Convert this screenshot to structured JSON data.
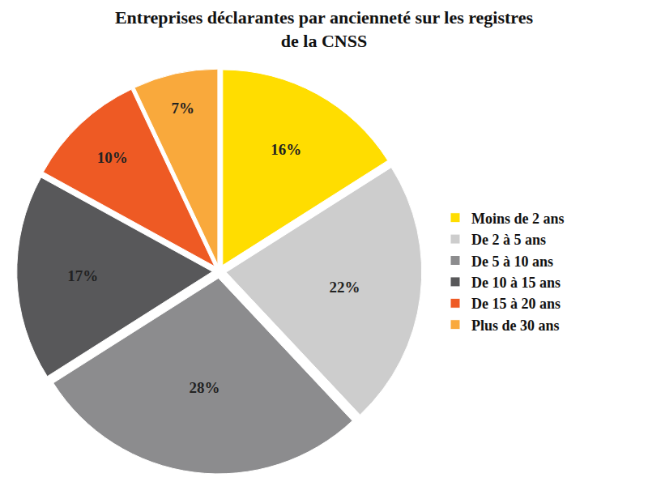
{
  "chart_data": {
    "type": "pie",
    "title": "Entreprises déclarantes par ancienneté sur les registres de la CNSS",
    "categories": [
      "Moins de 2 ans",
      "De 2 à 5 ans",
      "De 5 à 10 ans",
      "De 10 à 15 ans",
      "De 15 à 20 ans",
      "Plus de 30 ans"
    ],
    "values": [
      16,
      22,
      28,
      17,
      10,
      7
    ],
    "value_labels": [
      "16%",
      "22%",
      "28%",
      "17%",
      "10%",
      "7%"
    ],
    "colors": [
      "#ffdd00",
      "#cdcdcd",
      "#8c8c8e",
      "#58585a",
      "#ee5a24",
      "#f9a93c"
    ],
    "data_labels": true,
    "legend": "right"
  }
}
